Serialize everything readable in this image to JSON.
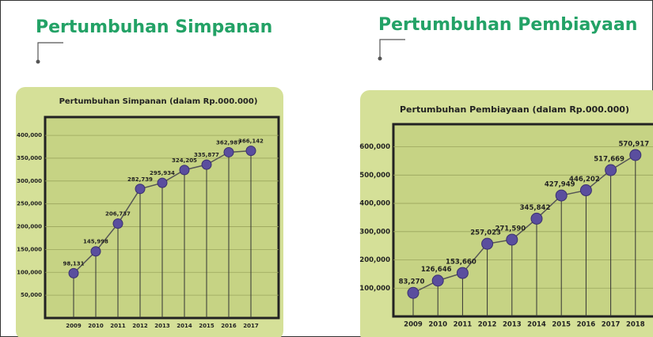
{
  "chart_data": [
    {
      "type": "line",
      "heading": "Pertumbuhan Simpanan",
      "title": "Pertumbuhan Simpanan (dalam Rp.000.000)",
      "categories": [
        "2009",
        "2010",
        "2011",
        "2012",
        "2013",
        "2014",
        "2015",
        "2016",
        "2017"
      ],
      "values": [
        98131,
        145998,
        206737,
        282739,
        295934,
        324205,
        335877,
        362987,
        366142
      ],
      "value_labels": [
        "98,131",
        "145,998",
        "206,737",
        "282,739",
        "295,934",
        "324,205",
        "335,877",
        "362,987",
        "366,142"
      ],
      "color": "#5a4e9e",
      "ylim": [
        0,
        440000
      ],
      "yticks": [
        {
          "value": 50000,
          "label": "50,000"
        },
        {
          "value": 100000,
          "label": "100,000"
        },
        {
          "value": 150000,
          "label": "150,000"
        },
        {
          "value": 200000,
          "label": "200,000"
        },
        {
          "value": 250000,
          "label": "250,000"
        },
        {
          "value": 300000,
          "label": "300,000"
        },
        {
          "value": 350000,
          "label": "350,000"
        },
        {
          "value": 400000,
          "label": "400,000"
        }
      ],
      "grid": true
    },
    {
      "type": "line",
      "heading": "Pertumbuhan Pembiayaan",
      "title": "Pertumbuhan Pembiayaan (dalam Rp.000.000)",
      "categories": [
        "2009",
        "2010",
        "2011",
        "2012",
        "2013",
        "2014",
        "2015",
        "2016",
        "2017",
        "2018"
      ],
      "values": [
        83270,
        126646,
        153660,
        257023,
        271590,
        345842,
        427949,
        446202,
        517669,
        570917
      ],
      "value_labels": [
        "83,270",
        "126,646",
        "153,660",
        "257,023",
        "271,590",
        "345,842",
        "427,949",
        "446,202",
        "517,669",
        "570,917"
      ],
      "color": "#5a4e9e",
      "ylim": [
        0,
        680000
      ],
      "yticks": [
        {
          "value": 100000,
          "label": "100,000"
        },
        {
          "value": 200000,
          "label": "200,000"
        },
        {
          "value": 300000,
          "label": "300,000"
        },
        {
          "value": 400000,
          "label": "400,000"
        },
        {
          "value": 500000,
          "label": "500,000"
        },
        {
          "value": 600000,
          "label": "600,000"
        }
      ],
      "grid": true
    }
  ]
}
